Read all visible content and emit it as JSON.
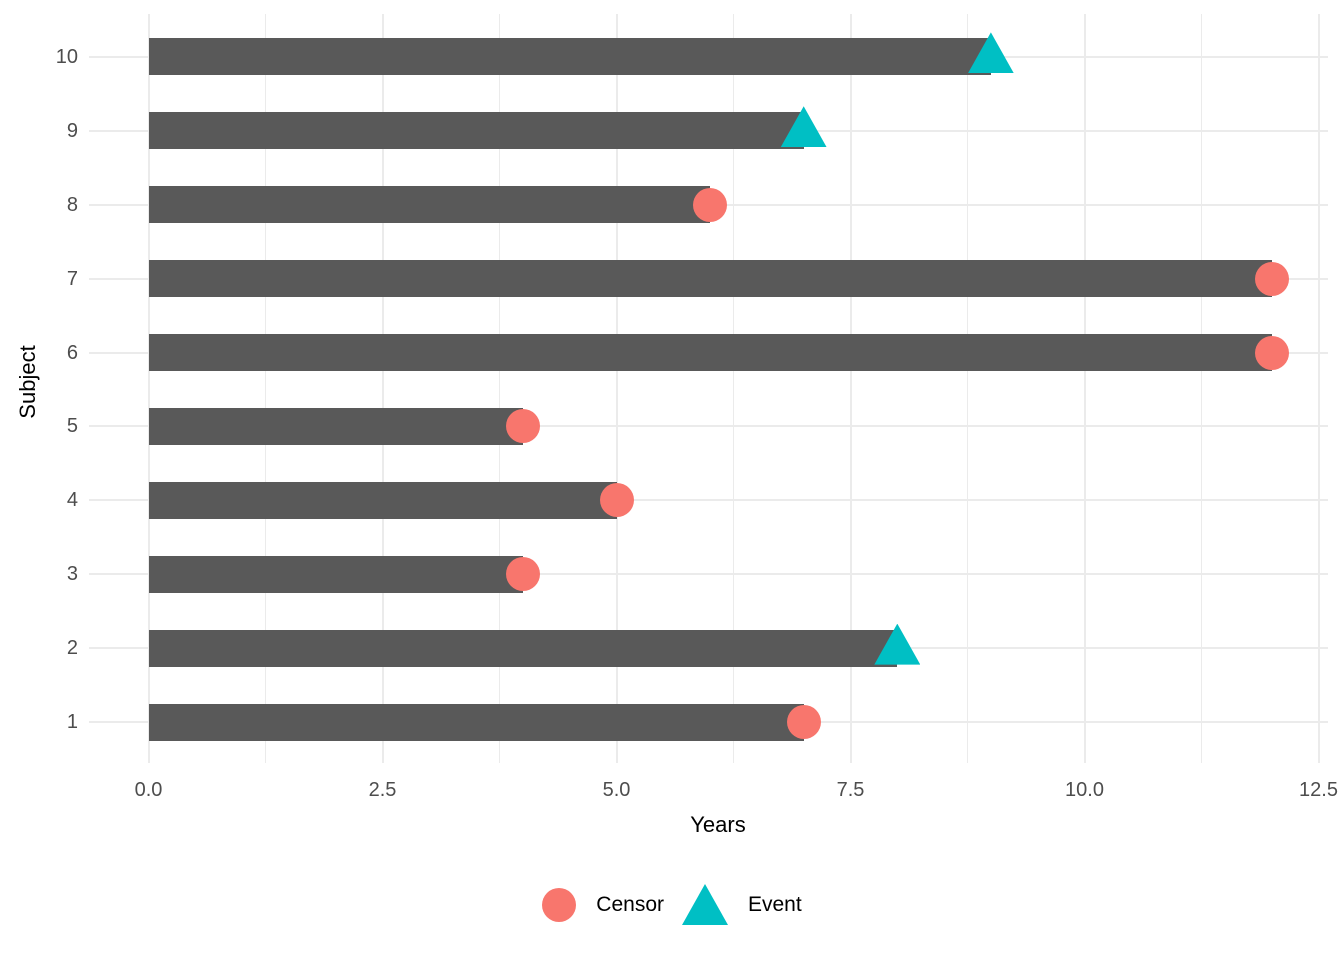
{
  "chart_data": {
    "type": "bar",
    "orientation": "horizontal",
    "xlabel": "Years",
    "ylabel": "Subject",
    "xlim": [
      0,
      12.5
    ],
    "x_major_ticks": [
      0,
      2.5,
      5,
      7.5,
      10,
      12.5
    ],
    "x_tick_labels": [
      "0.0",
      "2.5",
      "5.0",
      "7.5",
      "10.0",
      "12.5"
    ],
    "x_minor_ticks": [
      1.25,
      3.75,
      6.25,
      8.75,
      11.25
    ],
    "y_categories": [
      "1",
      "2",
      "3",
      "4",
      "5",
      "6",
      "7",
      "8",
      "9",
      "10"
    ],
    "grid": "major+minor",
    "legend_position": "bottom",
    "subjects": [
      {
        "subject": "1",
        "years": 7,
        "status": "Censor"
      },
      {
        "subject": "2",
        "years": 8,
        "status": "Event"
      },
      {
        "subject": "3",
        "years": 4,
        "status": "Censor"
      },
      {
        "subject": "4",
        "years": 5,
        "status": "Censor"
      },
      {
        "subject": "5",
        "years": 4,
        "status": "Censor"
      },
      {
        "subject": "6",
        "years": 12,
        "status": "Censor"
      },
      {
        "subject": "7",
        "years": 12,
        "status": "Censor"
      },
      {
        "subject": "8",
        "years": 6,
        "status": "Censor"
      },
      {
        "subject": "9",
        "years": 7,
        "status": "Event"
      },
      {
        "subject": "10",
        "years": 9,
        "status": "Event"
      }
    ],
    "legend": [
      {
        "label": "Censor",
        "shape": "circle",
        "color": "#F8766D"
      },
      {
        "label": "Event",
        "shape": "triangle",
        "color": "#00BFC4"
      }
    ],
    "colors": {
      "bar": "#595959",
      "grid": "#EBEBEB",
      "axis_text": "#4D4D4D",
      "axis_title": "#000000",
      "censor": "#F8766D",
      "event": "#00BFC4"
    }
  }
}
